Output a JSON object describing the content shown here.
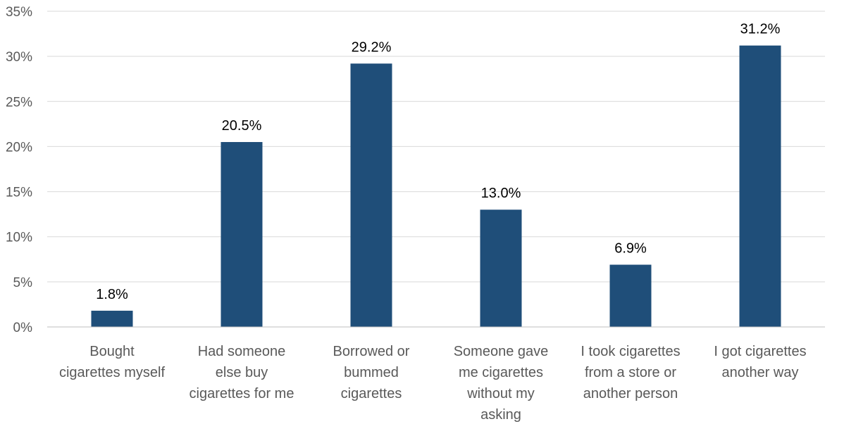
{
  "chart_data": {
    "type": "bar",
    "title": "",
    "xlabel": "",
    "ylabel": "",
    "categories": [
      [
        "Bought",
        "cigarettes myself"
      ],
      [
        "Had someone",
        "else buy",
        "cigarettes for me"
      ],
      [
        "Borrowed or",
        "bummed",
        "cigarettes"
      ],
      [
        "Someone gave",
        "me cigarettes",
        "without my",
        "asking"
      ],
      [
        "I took cigarettes",
        "from a store or",
        "another person"
      ],
      [
        "I got cigarettes",
        "another way"
      ]
    ],
    "values": [
      1.8,
      20.5,
      29.2,
      13.0,
      6.9,
      31.2
    ],
    "data_labels": [
      "1.8%",
      "20.5%",
      "29.2%",
      "13.0%",
      "6.9%",
      "31.2%"
    ],
    "ylim": [
      0,
      35
    ],
    "yticks": [
      0,
      5,
      10,
      15,
      20,
      25,
      30,
      35
    ],
    "ytick_labels": [
      "0%",
      "5%",
      "10%",
      "15%",
      "20%",
      "25%",
      "30%",
      "35%"
    ],
    "grid": true,
    "legend": "none",
    "bar_color": "#1f4e79"
  }
}
